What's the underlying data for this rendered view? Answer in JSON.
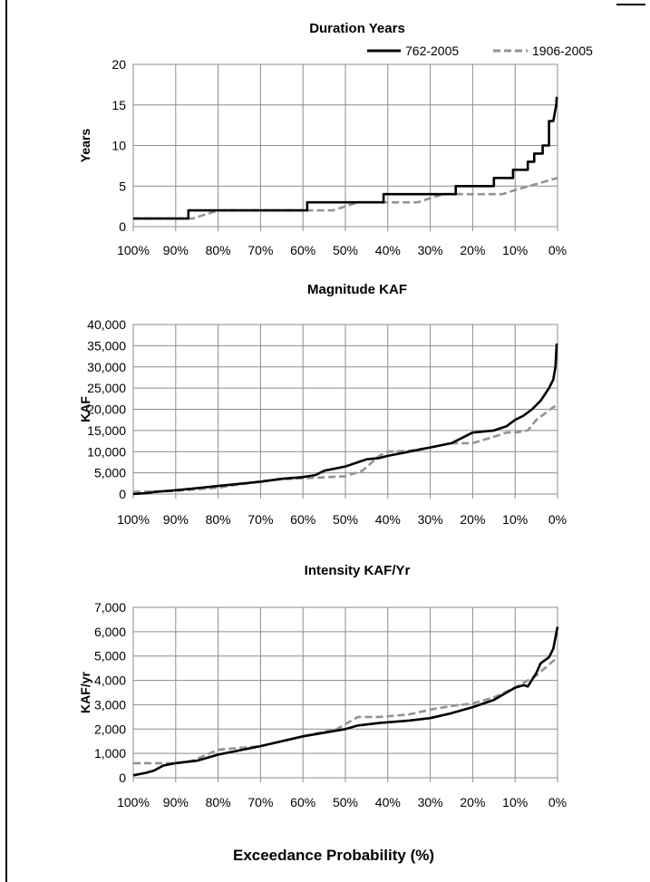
{
  "x_axis_title": "Exceedance Probability (%)",
  "legend": [
    {
      "name": "762-2005",
      "color": "#000000",
      "dash": "solid"
    },
    {
      "name": "1906-2005",
      "color": "#939393",
      "dash": "dashed"
    }
  ],
  "chart_data": [
    {
      "type": "line",
      "title": "Duration Years",
      "ylabel": "Years",
      "xlabel": "",
      "x_reversed": true,
      "xlim": [
        100,
        0
      ],
      "ylim": [
        0,
        20
      ],
      "x_ticks": [
        "100%",
        "90%",
        "80%",
        "70%",
        "60%",
        "50%",
        "40%",
        "30%",
        "20%",
        "10%",
        "0%"
      ],
      "y_ticks": [
        "0",
        "5",
        "10",
        "15",
        "20"
      ],
      "grid": true,
      "legend_position": "top",
      "series": [
        {
          "name": "762-2005",
          "x": [
            100,
            87,
            87,
            59,
            59,
            41,
            41,
            24,
            24,
            15,
            15,
            10.5,
            10.5,
            7,
            7,
            5.5,
            5.5,
            3.5,
            3.5,
            2,
            2,
            1,
            1,
            0.3,
            0.2
          ],
          "y": [
            1,
            1,
            2,
            2,
            3,
            3,
            4,
            4,
            5,
            5,
            6,
            6,
            7,
            7,
            8,
            8,
            9,
            9,
            10,
            10,
            13,
            13,
            13,
            15,
            16
          ]
        },
        {
          "name": "1906-2005",
          "x": [
            100,
            86,
            80,
            59,
            53,
            47,
            33,
            27,
            13,
            10,
            0
          ],
          "y": [
            1,
            1,
            2,
            2,
            2,
            3,
            3,
            4,
            4,
            4.5,
            6
          ]
        }
      ]
    },
    {
      "type": "line",
      "title": "Magnitude KAF",
      "ylabel": "KAF",
      "xlabel": "",
      "x_reversed": true,
      "xlim": [
        100,
        0
      ],
      "ylim": [
        0,
        40000
      ],
      "x_ticks": [
        "100%",
        "90%",
        "80%",
        "70%",
        "60%",
        "50%",
        "40%",
        "30%",
        "20%",
        "10%",
        "0%"
      ],
      "y_ticks": [
        "0",
        "5,000",
        "10,000",
        "15,000",
        "20,000",
        "25,000",
        "30,000",
        "35,000",
        "40,000"
      ],
      "grid": true,
      "series": [
        {
          "name": "762-2005",
          "x": [
            100,
            97,
            95,
            90,
            85,
            80,
            70,
            65,
            60,
            57,
            55,
            50,
            47,
            45,
            42,
            40,
            35,
            30,
            25,
            22,
            20,
            15,
            12,
            10,
            8,
            6,
            4,
            3,
            2,
            1,
            0.5,
            0.2
          ],
          "y": [
            0,
            200,
            500,
            900,
            1400,
            1900,
            2900,
            3600,
            4000,
            4500,
            5500,
            6500,
            7500,
            8200,
            8500,
            9000,
            10000,
            11000,
            12000,
            13500,
            14500,
            15000,
            16000,
            17500,
            18500,
            20000,
            22000,
            23500,
            25000,
            27000,
            30000,
            35500
          ]
        },
        {
          "name": "1906-2005",
          "x": [
            100,
            90,
            80,
            70,
            65,
            60,
            50,
            46,
            42,
            40,
            35,
            30,
            25,
            20,
            15,
            12,
            10,
            7,
            5,
            3,
            1,
            0
          ],
          "y": [
            500,
            700,
            1500,
            3000,
            3500,
            3700,
            4200,
            5500,
            9000,
            10000,
            10200,
            11000,
            12000,
            12000,
            13500,
            14500,
            14500,
            15000,
            17500,
            19000,
            20500,
            21000
          ]
        }
      ]
    },
    {
      "type": "line",
      "title": "Intensity KAF/Yr",
      "ylabel": "KAF/yr",
      "xlabel": "",
      "x_reversed": true,
      "xlim": [
        100,
        0
      ],
      "ylim": [
        0,
        7000
      ],
      "x_ticks": [
        "100%",
        "90%",
        "80%",
        "70%",
        "60%",
        "50%",
        "40%",
        "30%",
        "20%",
        "10%",
        "0%"
      ],
      "y_ticks": [
        "0",
        "1,000",
        "2,000",
        "3,000",
        "4,000",
        "5,000",
        "6,000",
        "7,000"
      ],
      "grid": true,
      "series": [
        {
          "name": "762-2005",
          "x": [
            100,
            97,
            95,
            93,
            90,
            85,
            80,
            70,
            60,
            50,
            47,
            42,
            35,
            30,
            25,
            20,
            15,
            12,
            10,
            8,
            7,
            5,
            4,
            2,
            1,
            0
          ],
          "y": [
            100,
            200,
            300,
            500,
            600,
            700,
            950,
            1300,
            1700,
            2000,
            2150,
            2250,
            2350,
            2450,
            2650,
            2900,
            3200,
            3500,
            3700,
            3800,
            3750,
            4300,
            4700,
            4950,
            5300,
            6200
          ]
        },
        {
          "name": "1906-2005",
          "x": [
            100,
            94,
            90,
            86,
            82,
            80,
            70,
            60,
            52,
            50,
            47,
            42,
            35,
            30,
            25,
            20,
            15,
            10,
            5,
            0
          ],
          "y": [
            600,
            600,
            600,
            700,
            1000,
            1150,
            1300,
            1700,
            2000,
            2200,
            2500,
            2500,
            2600,
            2800,
            2950,
            3050,
            3300,
            3700,
            4200,
            4950
          ]
        }
      ]
    }
  ]
}
